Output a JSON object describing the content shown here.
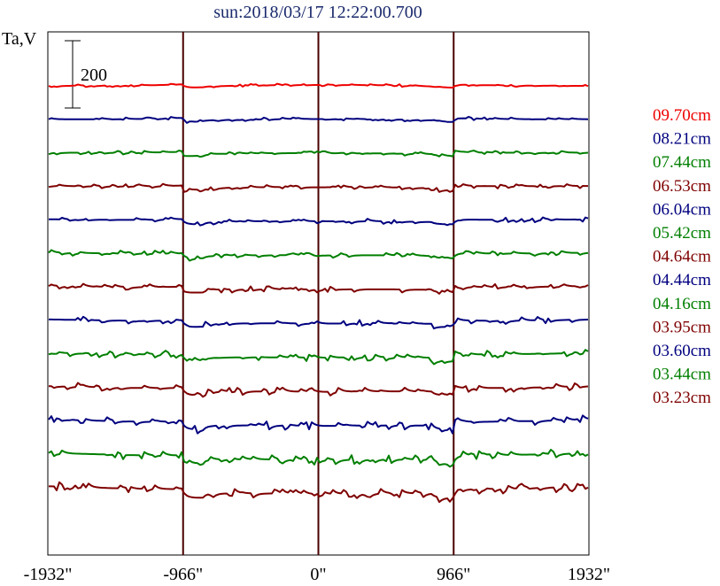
{
  "chart_data": {
    "type": "line",
    "title": "sun:2018/03/17 12:22:00.700",
    "ylabel": "Ta,V",
    "scale_bar_label": "200",
    "x_ticks": [
      "-1932\"",
      "-966\"",
      "0\"",
      "966\"",
      "1932\""
    ],
    "x_tick_values": [
      -1932,
      -966,
      0,
      966,
      1932
    ],
    "xlim": [
      -1932,
      1932
    ],
    "vertical_lines_at": [
      -966,
      0,
      966
    ],
    "grid": false,
    "legend_position": "right",
    "series": [
      {
        "name": "09.70cm",
        "color": "#ee0000",
        "seed": 1
      },
      {
        "name": "08.21cm",
        "color": "#00007f",
        "seed": 2
      },
      {
        "name": "07.44cm",
        "color": "#007f00",
        "seed": 3
      },
      {
        "name": "06.53cm",
        "color": "#7f0000",
        "seed": 4
      },
      {
        "name": "06.04cm",
        "color": "#00007f",
        "seed": 5
      },
      {
        "name": "05.42cm",
        "color": "#007f00",
        "seed": 6
      },
      {
        "name": "04.64cm",
        "color": "#7f0000",
        "seed": 7
      },
      {
        "name": "04.44cm",
        "color": "#00007f",
        "seed": 8
      },
      {
        "name": "04.16cm",
        "color": "#007f00",
        "seed": 9
      },
      {
        "name": "03.95cm",
        "color": "#7f0000",
        "seed": 10
      },
      {
        "name": "03.60cm",
        "color": "#00007f",
        "seed": 11
      },
      {
        "name": "03.44cm",
        "color": "#007f00",
        "seed": 12
      },
      {
        "name": "03.23cm",
        "color": "#7f0000",
        "seed": 13
      }
    ]
  }
}
